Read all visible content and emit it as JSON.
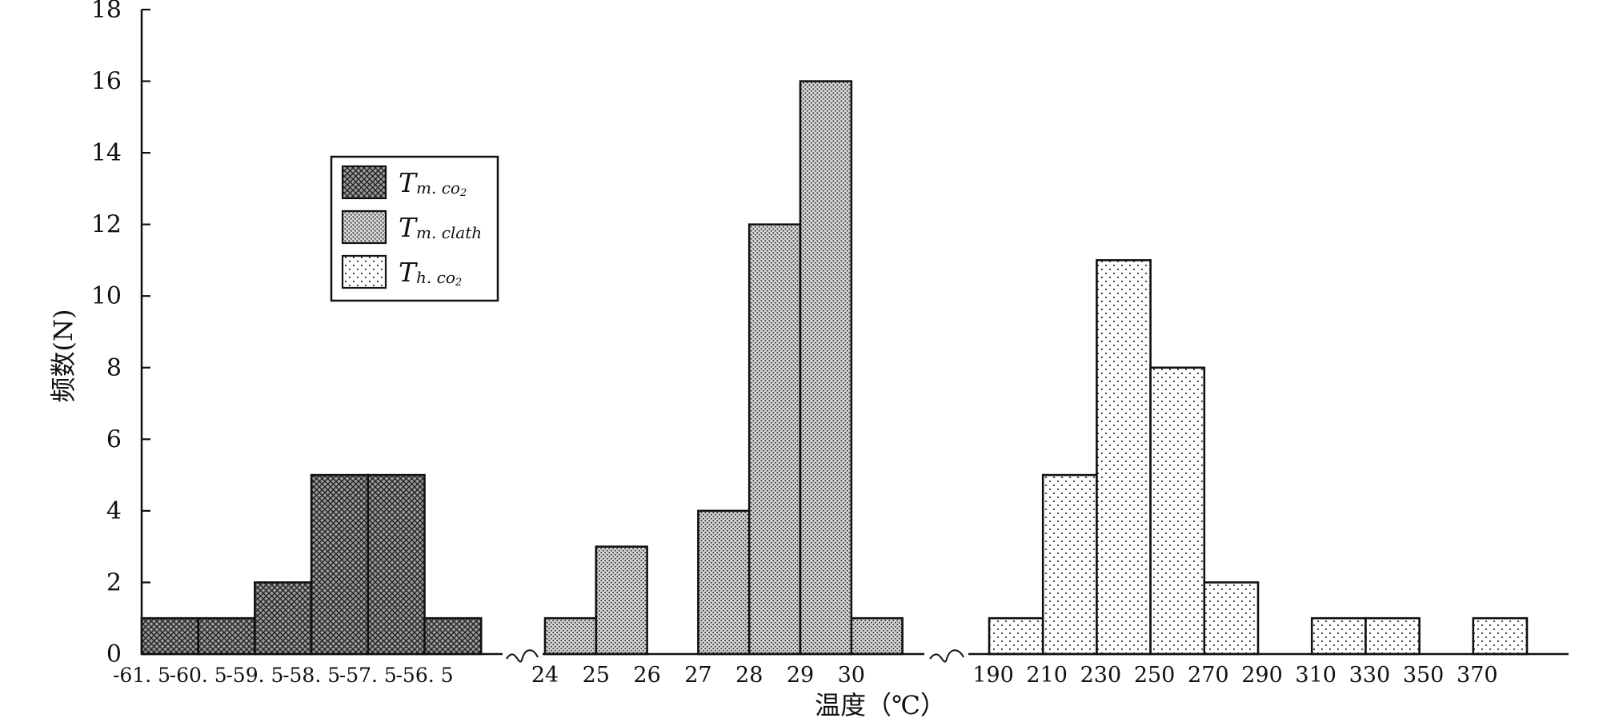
{
  "chart_data": {
    "type": "bar",
    "title": "",
    "xlabel": "温度（℃）",
    "ylabel": "频数(N)",
    "ylim": [
      0,
      18
    ],
    "y_ticks": [
      "0",
      "2",
      "4",
      "6",
      "8",
      "10",
      "12",
      "14",
      "16",
      "18"
    ],
    "axis_break_symbol": "~",
    "groups": [
      {
        "name": "Tm.co2",
        "fill": "crosshatch",
        "tick_labels": [
          "-61. 5",
          "-60. 5",
          "-59. 5",
          "-58. 5",
          "-57. 5",
          "-56. 5"
        ],
        "bins": [
          {
            "from": -61.5,
            "to": -60.5,
            "value": 1
          },
          {
            "from": -60.5,
            "to": -59.5,
            "value": 1
          },
          {
            "from": -59.5,
            "to": -58.5,
            "value": 2
          },
          {
            "from": -58.5,
            "to": -57.5,
            "value": 5
          },
          {
            "from": -57.5,
            "to": -56.5,
            "value": 5
          },
          {
            "from": -56.5,
            "to": -55.5,
            "value": 1
          }
        ]
      },
      {
        "name": "Tm.clath",
        "fill": "dense-dots",
        "tick_labels": [
          "24",
          "25",
          "26",
          "27",
          "28",
          "29",
          "30"
        ],
        "bins": [
          {
            "from": 24,
            "to": 25,
            "value": 1
          },
          {
            "from": 25,
            "to": 26,
            "value": 3
          },
          {
            "from": 27,
            "to": 28,
            "value": 4
          },
          {
            "from": 28,
            "to": 29,
            "value": 12
          },
          {
            "from": 29,
            "to": 30,
            "value": 16
          },
          {
            "from": 30,
            "to": 31,
            "value": 1
          }
        ]
      },
      {
        "name": "Th.co2",
        "fill": "sparse-dots",
        "tick_labels": [
          "190",
          "210",
          "230",
          "250",
          "270",
          "290",
          "310",
          "330",
          "350",
          "370"
        ],
        "bins": [
          {
            "from": 190,
            "to": 210,
            "value": 1
          },
          {
            "from": 210,
            "to": 230,
            "value": 5
          },
          {
            "from": 230,
            "to": 250,
            "value": 11
          },
          {
            "from": 250,
            "to": 270,
            "value": 8
          },
          {
            "from": 270,
            "to": 290,
            "value": 2
          },
          {
            "from": 310,
            "to": 330,
            "value": 1
          },
          {
            "from": 330,
            "to": 350,
            "value": 1
          },
          {
            "from": 370,
            "to": 390,
            "value": 1
          }
        ]
      }
    ],
    "legend": {
      "placement": "upper-left",
      "items": [
        {
          "main": "T",
          "sub": "m. co",
          "sub2": "2",
          "fill": "crosshatch"
        },
        {
          "main": "T",
          "sub": "m. clath",
          "sub2": "",
          "fill": "dense-dots"
        },
        {
          "main": "T",
          "sub": "h. co",
          "sub2": "2",
          "fill": "sparse-dots"
        }
      ]
    },
    "colors": {
      "stroke": "#111111",
      "crosshatch_bg": "#9a9a9a",
      "dense_bg": "#d4d4d4",
      "sparse_bg": "#ffffff"
    }
  }
}
